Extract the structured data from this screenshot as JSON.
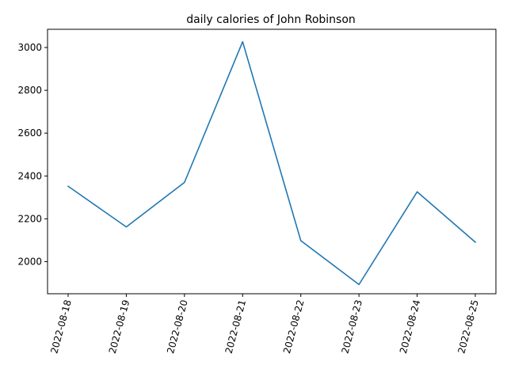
{
  "chart_data": {
    "type": "line",
    "title": "daily calories of John Robinson",
    "xlabel": "",
    "ylabel": "",
    "x": [
      "2022-08-18",
      "2022-08-19",
      "2022-08-20",
      "2022-08-21",
      "2022-08-22",
      "2022-08-23",
      "2022-08-24",
      "2022-08-25"
    ],
    "series": [
      {
        "values": [
          2352,
          2162,
          2370,
          3027,
          2098,
          1893,
          2326,
          2091
        ]
      }
    ],
    "yticks": [
      2000,
      2200,
      2400,
      2600,
      2800,
      3000
    ],
    "ylim": [
      1850,
      3085
    ],
    "grid": false,
    "legend": "none",
    "colors": {
      "line": "#1f77b4"
    }
  }
}
